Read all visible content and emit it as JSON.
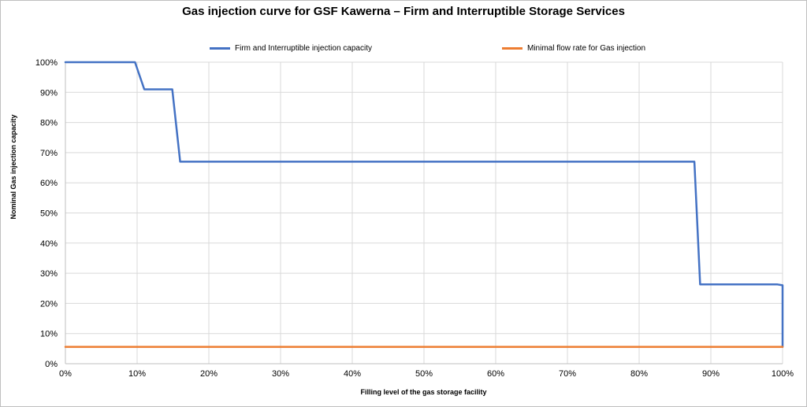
{
  "chart_data": {
    "type": "line",
    "title": "Gas injection curve for GSF Kawerna – Firm and Interruptible Storage Services",
    "xlabel": "Filling level of the gas storage facility",
    "ylabel": "Nominal Gas injection capacity",
    "xlim": [
      0,
      100
    ],
    "ylim": [
      0,
      100
    ],
    "x_ticks": [
      "0%",
      "10%",
      "20%",
      "30%",
      "40%",
      "50%",
      "60%",
      "70%",
      "80%",
      "90%",
      "100%"
    ],
    "y_ticks": [
      "0%",
      "10%",
      "20%",
      "30%",
      "40%",
      "50%",
      "60%",
      "70%",
      "80%",
      "90%",
      "100%"
    ],
    "grid": true,
    "legend_position": "top",
    "series": [
      {
        "name": "Firm and Interruptible injection capacity",
        "color": "#4472C4",
        "points": [
          [
            0,
            100
          ],
          [
            9.7,
            100
          ],
          [
            11,
            91
          ],
          [
            14.9,
            91
          ],
          [
            16,
            67
          ],
          [
            87.7,
            67
          ],
          [
            88.5,
            26.3
          ],
          [
            99.3,
            26.3
          ],
          [
            100,
            26
          ],
          [
            100,
            5.6
          ]
        ]
      },
      {
        "name": "Minimal flow rate for Gas injection",
        "color": "#ED7D31",
        "points": [
          [
            0,
            5.6
          ],
          [
            100,
            5.6
          ]
        ]
      }
    ]
  }
}
